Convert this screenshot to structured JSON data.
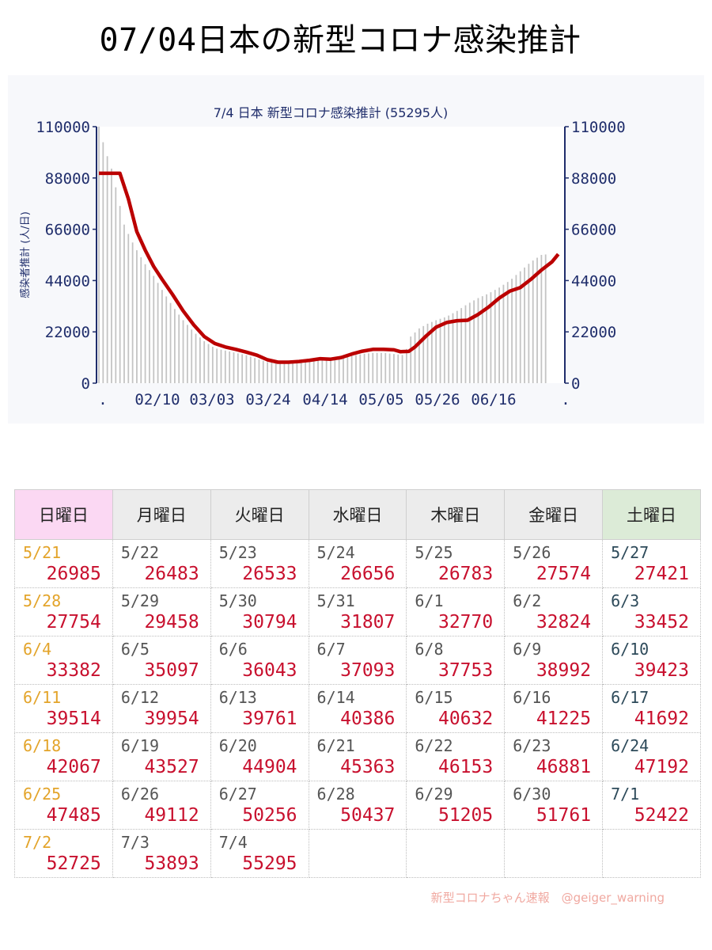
{
  "page_title": "07/04日本の新型コロナ感染推計",
  "credit": "新型コロナちゃん速報　@geiger_warning",
  "colors": {
    "bars": "#c4c4c4",
    "line": "#bb0000",
    "axis": "#1f2d6b",
    "title": "#1f2d6b",
    "value_text": "#c8102e",
    "sunday_date": "#e3a42a",
    "saturday_date": "#2d4a5a",
    "sunday_header_bg": "#fbd8f3",
    "saturday_header_bg": "#dcebd7"
  },
  "chart_data": {
    "type": "bar",
    "title": "7/4 日本 新型コロナ感染推計 (55295人)",
    "ylabel": "感染者推計 (人/日)",
    "xlabel": "",
    "ylim": [
      0,
      110000
    ],
    "yticks": [
      0,
      22000,
      44000,
      66000,
      88000,
      110000
    ],
    "ytick_labels": [
      "0",
      "22000",
      "44000",
      "66000",
      "88000",
      "110000"
    ],
    "xtick_labels": [
      ".",
      "02/10",
      "03/03",
      "03/24",
      "04/14",
      "05/05",
      "05/26",
      "06/16",
      "."
    ],
    "grid": false,
    "legend": "none",
    "series": [
      {
        "type": "bar",
        "points": [
          [
            0,
            110000
          ],
          [
            3,
            100000
          ],
          [
            6,
            92000
          ],
          [
            9,
            80000
          ],
          [
            12,
            68000
          ],
          [
            15,
            62000
          ],
          [
            18,
            57000
          ],
          [
            22,
            51000
          ],
          [
            26,
            46000
          ],
          [
            30,
            40000
          ],
          [
            35,
            33000
          ],
          [
            40,
            27000
          ],
          [
            45,
            22000
          ],
          [
            50,
            18000
          ],
          [
            55,
            15000
          ],
          [
            60,
            14000
          ],
          [
            65,
            13000
          ],
          [
            70,
            12000
          ],
          [
            75,
            10500
          ],
          [
            80,
            9000
          ],
          [
            85,
            9000
          ],
          [
            90,
            9200
          ],
          [
            95,
            9600
          ],
          [
            100,
            10000
          ],
          [
            105,
            10300
          ],
          [
            110,
            10500
          ],
          [
            115,
            11000
          ],
          [
            120,
            11800
          ],
          [
            125,
            12500
          ],
          [
            130,
            13000
          ],
          [
            135,
            13000
          ],
          [
            140,
            12500
          ],
          [
            145,
            12000
          ],
          [
            148,
            20000
          ],
          [
            152,
            23500
          ],
          [
            156,
            25500
          ],
          [
            160,
            27000
          ],
          [
            165,
            28500
          ],
          [
            170,
            31000
          ],
          [
            175,
            34000
          ],
          [
            180,
            36500
          ],
          [
            185,
            38500
          ],
          [
            190,
            41000
          ],
          [
            195,
            44000
          ],
          [
            200,
            48000
          ],
          [
            205,
            52000
          ],
          [
            210,
            55000
          ],
          [
            213,
            55295
          ]
        ]
      },
      {
        "type": "line",
        "points": [
          [
            0,
            90000
          ],
          [
            10,
            90000
          ],
          [
            14,
            79000
          ],
          [
            18,
            65000
          ],
          [
            22,
            57000
          ],
          [
            26,
            50000
          ],
          [
            30,
            44500
          ],
          [
            35,
            38000
          ],
          [
            40,
            31000
          ],
          [
            45,
            25000
          ],
          [
            50,
            20000
          ],
          [
            55,
            17000
          ],
          [
            60,
            15500
          ],
          [
            65,
            14500
          ],
          [
            70,
            13300
          ],
          [
            75,
            12000
          ],
          [
            80,
            10000
          ],
          [
            85,
            9000
          ],
          [
            90,
            9000
          ],
          [
            95,
            9300
          ],
          [
            100,
            9800
          ],
          [
            105,
            10500
          ],
          [
            110,
            10300
          ],
          [
            115,
            11000
          ],
          [
            120,
            12500
          ],
          [
            125,
            13700
          ],
          [
            130,
            14500
          ],
          [
            135,
            14500
          ],
          [
            140,
            14300
          ],
          [
            143,
            13500
          ],
          [
            147,
            13600
          ],
          [
            150,
            15500
          ],
          [
            155,
            20000
          ],
          [
            160,
            24000
          ],
          [
            165,
            26000
          ],
          [
            170,
            26800
          ],
          [
            175,
            27000
          ],
          [
            180,
            29500
          ],
          [
            185,
            32700
          ],
          [
            190,
            36500
          ],
          [
            195,
            39500
          ],
          [
            200,
            41000
          ],
          [
            205,
            44500
          ],
          [
            210,
            48500
          ],
          [
            215,
            52000
          ],
          [
            218,
            55295
          ]
        ]
      }
    ]
  },
  "table": {
    "headers": [
      "日曜日",
      "月曜日",
      "火曜日",
      "水曜日",
      "木曜日",
      "金曜日",
      "土曜日"
    ],
    "rows": [
      [
        {
          "date": "5/21",
          "value": "26985"
        },
        {
          "date": "5/22",
          "value": "26483"
        },
        {
          "date": "5/23",
          "value": "26533"
        },
        {
          "date": "5/24",
          "value": "26656"
        },
        {
          "date": "5/25",
          "value": "26783"
        },
        {
          "date": "5/26",
          "value": "27574"
        },
        {
          "date": "5/27",
          "value": "27421"
        }
      ],
      [
        {
          "date": "5/28",
          "value": "27754"
        },
        {
          "date": "5/29",
          "value": "29458"
        },
        {
          "date": "5/30",
          "value": "30794"
        },
        {
          "date": "5/31",
          "value": "31807"
        },
        {
          "date": "6/1",
          "value": "32770"
        },
        {
          "date": "6/2",
          "value": "32824"
        },
        {
          "date": "6/3",
          "value": "33452"
        }
      ],
      [
        {
          "date": "6/4",
          "value": "33382"
        },
        {
          "date": "6/5",
          "value": "35097"
        },
        {
          "date": "6/6",
          "value": "36043"
        },
        {
          "date": "6/7",
          "value": "37093"
        },
        {
          "date": "6/8",
          "value": "37753"
        },
        {
          "date": "6/9",
          "value": "38992"
        },
        {
          "date": "6/10",
          "value": "39423"
        }
      ],
      [
        {
          "date": "6/11",
          "value": "39514"
        },
        {
          "date": "6/12",
          "value": "39954"
        },
        {
          "date": "6/13",
          "value": "39761"
        },
        {
          "date": "6/14",
          "value": "40386"
        },
        {
          "date": "6/15",
          "value": "40632"
        },
        {
          "date": "6/16",
          "value": "41225"
        },
        {
          "date": "6/17",
          "value": "41692"
        }
      ],
      [
        {
          "date": "6/18",
          "value": "42067"
        },
        {
          "date": "6/19",
          "value": "43527"
        },
        {
          "date": "6/20",
          "value": "44904"
        },
        {
          "date": "6/21",
          "value": "45363"
        },
        {
          "date": "6/22",
          "value": "46153"
        },
        {
          "date": "6/23",
          "value": "46881"
        },
        {
          "date": "6/24",
          "value": "47192"
        }
      ],
      [
        {
          "date": "6/25",
          "value": "47485"
        },
        {
          "date": "6/26",
          "value": "49112"
        },
        {
          "date": "6/27",
          "value": "50256"
        },
        {
          "date": "6/28",
          "value": "50437"
        },
        {
          "date": "6/29",
          "value": "51205"
        },
        {
          "date": "6/30",
          "value": "51761"
        },
        {
          "date": "7/1",
          "value": "52422"
        }
      ],
      [
        {
          "date": "7/2",
          "value": "52725"
        },
        {
          "date": "7/3",
          "value": "53893"
        },
        {
          "date": "7/4",
          "value": "55295"
        },
        null,
        null,
        null,
        null
      ]
    ]
  }
}
